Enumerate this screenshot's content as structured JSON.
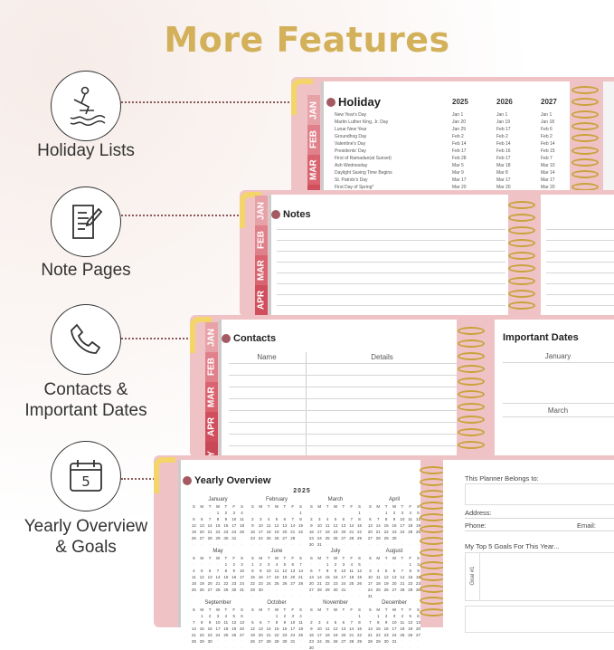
{
  "title": "More Features",
  "features": [
    {
      "label": "Holiday Lists",
      "icon": "jet-ski-icon"
    },
    {
      "label": "Note Pages",
      "icon": "notepad-icon"
    },
    {
      "label": "Contacts &",
      "label2": "Important Dates",
      "icon": "phone-icon"
    },
    {
      "label": "Yearly Overview",
      "label2": "& Goals",
      "icon": "calendar-icon",
      "icon_text": "5"
    }
  ],
  "tabs": [
    "JAN",
    "FEB",
    "MAR",
    "APR",
    "AY"
  ],
  "tab_colors": [
    "#e7a2a8",
    "#e0808a",
    "#d9646f",
    "#cf4f5c"
  ],
  "holiday": {
    "title": "Holiday",
    "years": [
      "2025",
      "2026",
      "2027"
    ],
    "rows": [
      [
        "New Year's Day",
        "Jan 1",
        "Jan 1",
        "Jan 1"
      ],
      [
        "Martin Luther King, Jr. Day",
        "Jan 20",
        "Jan 19",
        "Jan 18"
      ],
      [
        "Lunar New Year",
        "Jan 29",
        "Feb 17",
        "Feb 6"
      ],
      [
        "Groundhog Day",
        "Feb 2",
        "Feb 2",
        "Feb 2"
      ],
      [
        "Valentine's Day",
        "Feb 14",
        "Feb 14",
        "Feb 14"
      ],
      [
        "Presidents' Day",
        "Feb 17",
        "Feb 16",
        "Feb 15"
      ],
      [
        "First of Ramadan(at Sunset)",
        "Feb 28",
        "Feb 17",
        "Feb 7"
      ],
      [
        "Ash Wednesday",
        "Mar 5",
        "Mar 18",
        "Mar 10"
      ],
      [
        "Daylight Saving Time Begins",
        "Mar 9",
        "Mar 8",
        "Mar 14"
      ],
      [
        "St. Patrick's Day",
        "Mar 17",
        "Mar 17",
        "Mar 17"
      ],
      [
        "First Day of Spring*",
        "Mar 20",
        "Mar 20",
        "Mar 20"
      ]
    ]
  },
  "notes": {
    "title": "Notes"
  },
  "contacts": {
    "title": "Contacts",
    "col_name": "Name",
    "col_details": "Details"
  },
  "important": {
    "title": "Important Dates",
    "m1": "January",
    "m2": "March"
  },
  "yearly": {
    "title": "Yearly Overview",
    "year": "2025",
    "weekdays": [
      "S",
      "M",
      "T",
      "W",
      "T",
      "F",
      "S"
    ],
    "months": [
      "January",
      "February",
      "March",
      "April",
      "May",
      "June",
      "July",
      "August",
      "September",
      "October",
      "November",
      "December"
    ]
  },
  "goals": {
    "belongs": "This Planner Belongs to:",
    "address": "Address:",
    "phone": "Phone:",
    "email": "Email:",
    "top5": "My Top 5 Goals For This Year...",
    "goal1": "Goal #1"
  }
}
